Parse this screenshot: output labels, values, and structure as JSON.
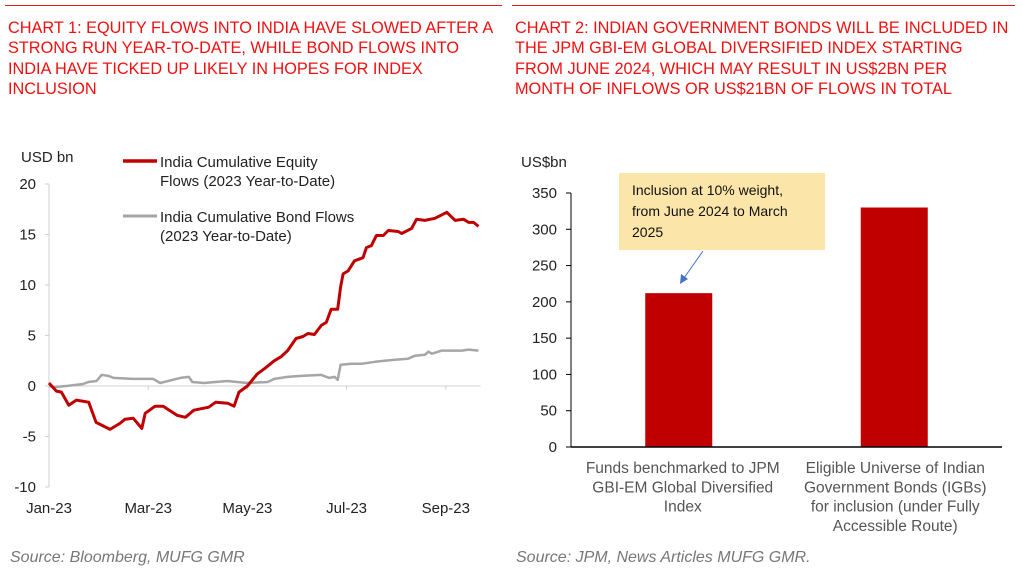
{
  "left": {
    "title": "CHART 1: EQUITY FLOWS INTO INDIA HAVE SLOWED AFTER A STRONG RUN YEAR-TO-DATE, WHILE BOND FLOWS INTO INDIA HAVE TICKED UP LIKELY IN HOPES FOR INDEX INCLUSION",
    "source": "Source: Bloomberg, MUFG GMR"
  },
  "right": {
    "title": "CHART 2: INDIAN GOVERNMENT BONDS WILL BE INCLUDED IN THE JPM GBI-EM GLOBAL DIVERSIFIED INDEX STARTING FROM JUNE 2024, WHICH MAY RESULT IN US$2BN PER MONTH OF INFLOWS OR US$21BN OF FLOWS IN TOTAL",
    "source": "Source: JPM, News Articles MUFG GMR."
  },
  "colors": {
    "title": "#f01010",
    "equity": "#c00000",
    "bond": "#a6a6a6",
    "bar": "#c00000",
    "annotation_bg": "#fbe5a8",
    "arrow": "#4472c4"
  },
  "chart_data": [
    {
      "type": "line",
      "ylabel": "USD bn",
      "ylim": [
        -10,
        20
      ],
      "yticks": [
        "20",
        "15",
        "10",
        "5",
        "0",
        "-5",
        "-10"
      ],
      "yticks_values": [
        20,
        15,
        10,
        5,
        0,
        -5,
        -10
      ],
      "x_unit": "months since Jan 1 2023",
      "xlim": [
        0,
        8.7
      ],
      "xticks": [
        "Jan-23",
        "Mar-23",
        "May-23",
        "Jul-23",
        "Sep-23"
      ],
      "xticks_values": [
        0,
        2,
        4,
        6,
        8
      ],
      "legend_position": "top",
      "series": [
        {
          "name": "India Cumulative Equity Flows (2023 Year-to-Date)",
          "legend_lines": [
            "India Cumulative Equity",
            "Flows (2023 Year-to-Date)"
          ],
          "x": [
            0,
            0.15,
            0.25,
            0.4,
            0.55,
            0.8,
            0.95,
            1.23,
            1.43,
            1.53,
            1.7,
            1.87,
            1.94,
            2.14,
            2.3,
            2.58,
            2.75,
            2.92,
            3.22,
            3.36,
            3.6,
            3.73,
            3.83,
            4.0,
            4.2,
            4.34,
            4.54,
            4.68,
            4.81,
            4.98,
            5.12,
            5.22,
            5.35,
            5.49,
            5.59,
            5.69,
            5.82,
            5.88,
            5.93,
            6.03,
            6.16,
            6.33,
            6.4,
            6.5,
            6.6,
            6.74,
            6.84,
            7.04,
            7.11,
            7.31,
            7.41,
            7.58,
            7.78,
            8.02,
            8.19,
            8.36,
            8.46,
            8.56,
            8.66
          ],
          "y": [
            0.3,
            -0.5,
            -0.6,
            -1.9,
            -1.4,
            -1.6,
            -3.6,
            -4.3,
            -3.7,
            -3.3,
            -3.2,
            -4.2,
            -2.7,
            -2.0,
            -2.0,
            -2.9,
            -3.1,
            -2.4,
            -2.1,
            -1.6,
            -1.7,
            -2.0,
            -0.6,
            0,
            1.2,
            1.7,
            2.5,
            2.9,
            3.5,
            4.7,
            4.9,
            5.2,
            5.1,
            6.0,
            6.3,
            7.6,
            7.6,
            9.8,
            11.1,
            11.4,
            12.4,
            12.7,
            13.7,
            13.9,
            14.9,
            14.9,
            15.4,
            15.3,
            15.1,
            15.6,
            16.5,
            16.4,
            16.6,
            17.2,
            16.4,
            16.5,
            16.2,
            16.2,
            15.8
          ]
        },
        {
          "name": "India Cumulative Bond Flows (2023 Year-to-Date)",
          "legend_lines": [
            "India Cumulative Bond Flows",
            "(2023 Year-to-Date)"
          ],
          "x": [
            0,
            0.11,
            0.35,
            0.69,
            0.79,
            0.96,
            1.06,
            1.2,
            1.3,
            1.7,
            2.1,
            2.24,
            2.65,
            2.82,
            2.89,
            3.12,
            3.59,
            4.0,
            4.41,
            4.54,
            4.81,
            5.08,
            5.49,
            5.65,
            5.76,
            5.82,
            5.88,
            6.1,
            6.3,
            6.57,
            6.97,
            7.24,
            7.38,
            7.58,
            7.65,
            7.72,
            7.92,
            8.32,
            8.46,
            8.66
          ],
          "y": [
            0,
            -0.1,
            0,
            0.2,
            0.4,
            0.5,
            1.1,
            1.0,
            0.8,
            0.7,
            0.7,
            0.3,
            0.8,
            0.9,
            0.4,
            0.3,
            0.5,
            0.3,
            0.4,
            0.7,
            0.9,
            1.0,
            1.1,
            0.8,
            0.9,
            0.6,
            2.1,
            2.2,
            2.2,
            2.4,
            2.6,
            2.7,
            3.0,
            3.1,
            3.4,
            3.2,
            3.5,
            3.5,
            3.6,
            3.5
          ]
        }
      ]
    },
    {
      "type": "bar",
      "ylabel": "US$bn",
      "ylim": [
        0,
        350
      ],
      "yticks": [
        "350",
        "300",
        "250",
        "200",
        "150",
        "100",
        "50",
        "0"
      ],
      "yticks_values": [
        350,
        300,
        250,
        200,
        150,
        100,
        50,
        0
      ],
      "categories": [
        [
          "Funds benchmarked to JPM",
          "GBI-EM Global Diversified",
          "Index"
        ],
        [
          "Eligible Universe of Indian",
          "Government Bonds (IGBs)",
          "for inclusion (under Fully",
          "Accessible Route)"
        ]
      ],
      "values": [
        212,
        330
      ],
      "annotation": {
        "lines": [
          "Inclusion at 10% weight,",
          "from June 2024 to March",
          "2025"
        ],
        "points_to": 0
      }
    }
  ]
}
